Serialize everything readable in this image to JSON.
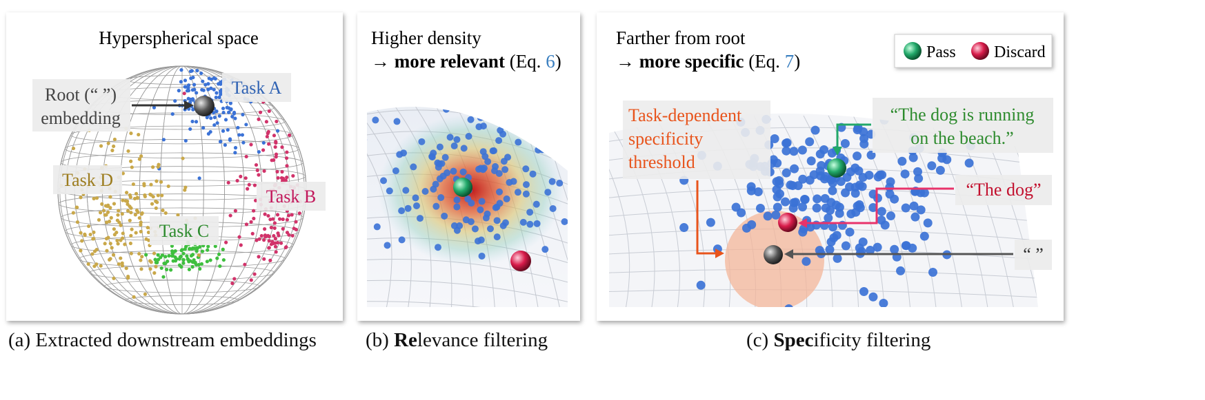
{
  "panel_a": {
    "title": "Hyperspherical space",
    "root_label_1": "Root (“ ”)",
    "root_label_2": "embedding",
    "tasks": [
      {
        "label": "Task A",
        "color": "#2f62b3"
      },
      {
        "label": "Task B",
        "color": "#c2185b"
      },
      {
        "label": "Task C",
        "color": "#2e8b2e"
      },
      {
        "label": "Task D",
        "color": "#9c7c1e"
      }
    ],
    "caption": "(a) Extracted downstream embeddings"
  },
  "panel_b": {
    "line1": "Higher density",
    "arrow": "→ ",
    "bold": "more relevant",
    "eq_prefix": " (Eq. ",
    "eq_num": "6",
    "eq_suffix": ")",
    "caption_prefix": "(b) ",
    "caption_bold": "Re",
    "caption_rest": "levance filtering"
  },
  "panel_c": {
    "line1": "Farther from root",
    "arrow": "→ ",
    "bold": "more specific",
    "eq_prefix": " (Eq. ",
    "eq_num": "7",
    "eq_suffix": ")",
    "legend_pass": "Pass",
    "legend_discard": "Discard",
    "threshold_1": "Task-dependent",
    "threshold_2": "specificity",
    "threshold_3": "threshold",
    "pass_text_1": "“The dog is running",
    "pass_text_2": "on the beach.”",
    "discard_text": "“The dog”",
    "root_text": "“ ”",
    "caption_prefix": "(c) ",
    "caption_bold": "Spec",
    "caption_rest": "ificity filtering"
  },
  "colors": {
    "point_blue": "#3b72d6",
    "pass_green": "#22a86a",
    "discard_red": "#d81b4a",
    "threshold_orange": "#e8541c",
    "eq_link": "#3a7fc0"
  }
}
